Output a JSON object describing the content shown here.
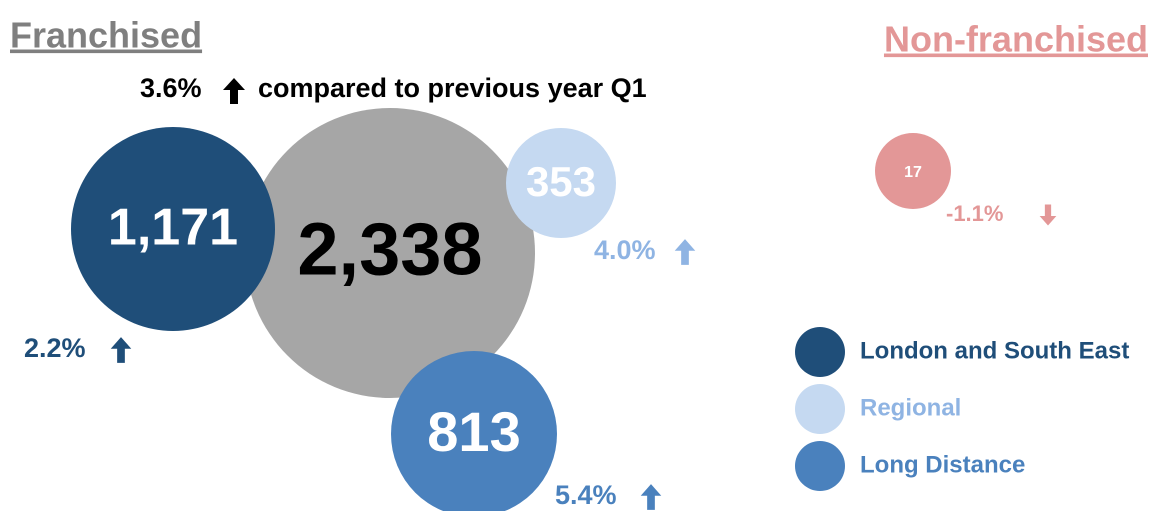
{
  "header": {
    "left": "Franchised",
    "right": "Non-franchised"
  },
  "subtitle": {
    "change": "3.6%",
    "text": "compared to previous year Q1"
  },
  "bubbles": [
    {
      "value": 2338,
      "label": "2,338",
      "color": "#a6a6a6"
    },
    {
      "value": 1171,
      "label": "1,171",
      "color": "#1f4e79",
      "change": "2.2%"
    },
    {
      "value": 353,
      "label": "353",
      "color": "#c5d9f1",
      "change": "4.0%"
    },
    {
      "value": 813,
      "label": "813",
      "color": "#4a81bd",
      "change": "5.4%"
    },
    {
      "value": 17,
      "label": "17",
      "color": "#e39797",
      "change": "-1.1%"
    }
  ],
  "legend": [
    {
      "name": "London and South East",
      "color": "#1f4e79"
    },
    {
      "name": "Regional",
      "color": "#c5d9f1"
    },
    {
      "name": "Long Distance",
      "color": "#4a81bd"
    }
  ]
}
